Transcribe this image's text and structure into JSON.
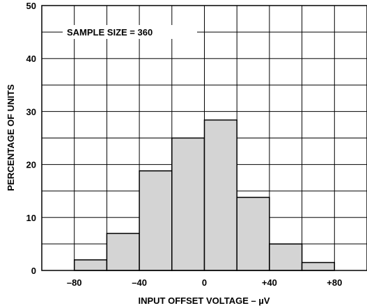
{
  "chart_data": {
    "type": "bar",
    "title": "",
    "annotation": "SAMPLE SIZE = 360",
    "xlabel": "INPUT OFFSET VOLTAGE – µV",
    "ylabel": "PERCENTAGE OF UNITS",
    "xlim": [
      -100,
      100
    ],
    "ylim": [
      0,
      50
    ],
    "grid": true,
    "x_ticks": [
      {
        "value": -80,
        "label": "–80"
      },
      {
        "value": -40,
        "label": "–40"
      },
      {
        "value": 0,
        "label": "0"
      },
      {
        "value": 40,
        "label": "+40"
      },
      {
        "value": 80,
        "label": "+80"
      }
    ],
    "y_ticks": [
      {
        "value": 0,
        "label": "0"
      },
      {
        "value": 10,
        "label": "10"
      },
      {
        "value": 20,
        "label": "20"
      },
      {
        "value": 30,
        "label": "30"
      },
      {
        "value": 40,
        "label": "40"
      },
      {
        "value": 50,
        "label": "50"
      }
    ],
    "bins": [
      {
        "from": -80,
        "to": -60,
        "value": 2.0
      },
      {
        "from": -60,
        "to": -40,
        "value": 7.0
      },
      {
        "from": -40,
        "to": -20,
        "value": 18.8
      },
      {
        "from": -20,
        "to": 0,
        "value": 25.0
      },
      {
        "from": 0,
        "to": 20,
        "value": 28.4
      },
      {
        "from": 20,
        "to": 40,
        "value": 13.8
      },
      {
        "from": 40,
        "to": 60,
        "value": 5.0
      },
      {
        "from": 60,
        "to": 80,
        "value": 1.5
      }
    ],
    "colors": {
      "bar_fill": "#d4d4d4",
      "bar_stroke": "#000000",
      "grid": "#000000",
      "background": "#ffffff"
    }
  }
}
